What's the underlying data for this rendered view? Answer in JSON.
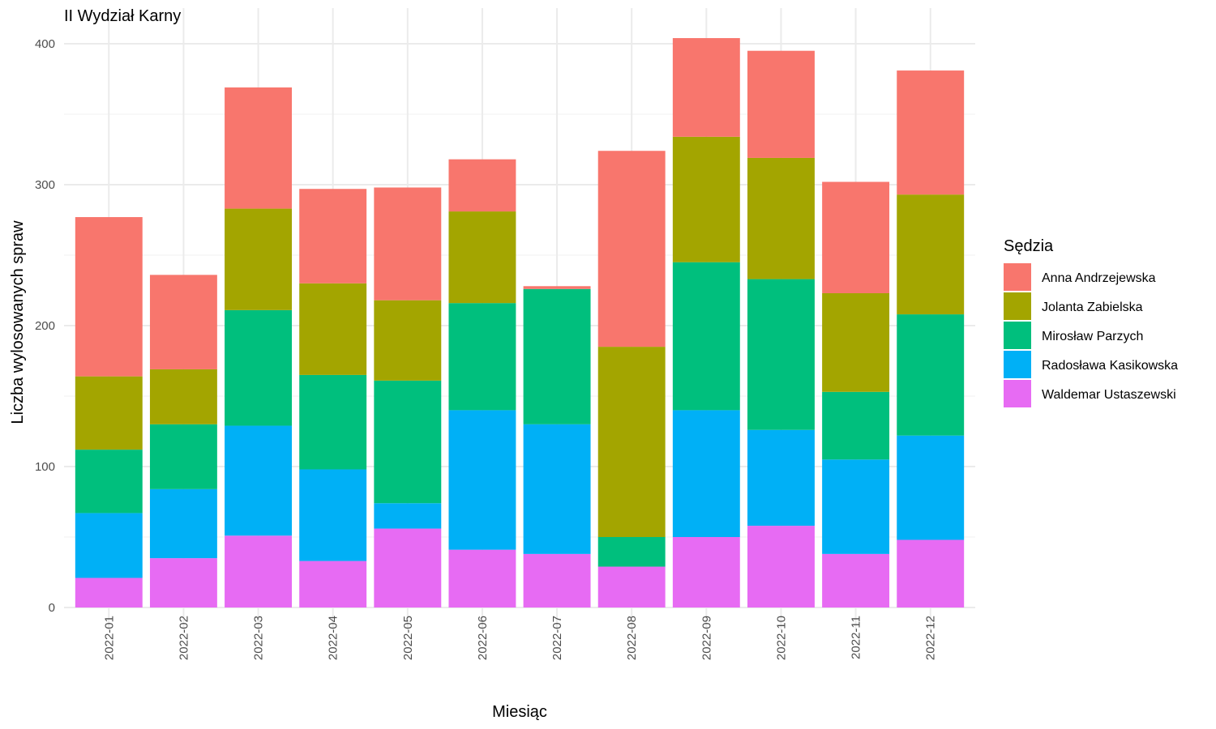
{
  "chart_data": {
    "type": "bar",
    "stacked": true,
    "title": "II Wydział Karny",
    "xlabel": "Miesiąc",
    "ylabel": "Liczba wylosowanych spraw",
    "ylim": [
      0,
      410
    ],
    "yticks": [
      0,
      100,
      200,
      300,
      400
    ],
    "grid": true,
    "legend_title": "Sędzia",
    "legend_position": "right",
    "categories": [
      "2022-01",
      "2022-02",
      "2022-03",
      "2022-04",
      "2022-05",
      "2022-06",
      "2022-07",
      "2022-08",
      "2022-09",
      "2022-10",
      "2022-11",
      "2022-12"
    ],
    "series": [
      {
        "name": "Anna Andrzejewska",
        "color": "#F8766D",
        "values": [
          113,
          67,
          86,
          67,
          80,
          37,
          2,
          139,
          70,
          76,
          79,
          88
        ]
      },
      {
        "name": "Jolanta Zabielska",
        "color": "#A3A500",
        "values": [
          52,
          39,
          72,
          65,
          57,
          65,
          0,
          135,
          89,
          86,
          70,
          85
        ]
      },
      {
        "name": "Mirosław Parzych",
        "color": "#00BF7D",
        "values": [
          45,
          46,
          82,
          67,
          87,
          76,
          96,
          21,
          105,
          107,
          48,
          86
        ]
      },
      {
        "name": "Radosława Kasikowska",
        "color": "#00B0F6",
        "values": [
          46,
          49,
          78,
          65,
          18,
          99,
          92,
          0,
          90,
          68,
          67,
          74
        ]
      },
      {
        "name": "Waldemar Ustaszewski",
        "color": "#E76BF3",
        "values": [
          21,
          35,
          51,
          33,
          56,
          41,
          38,
          29,
          50,
          58,
          38,
          48
        ]
      }
    ]
  }
}
